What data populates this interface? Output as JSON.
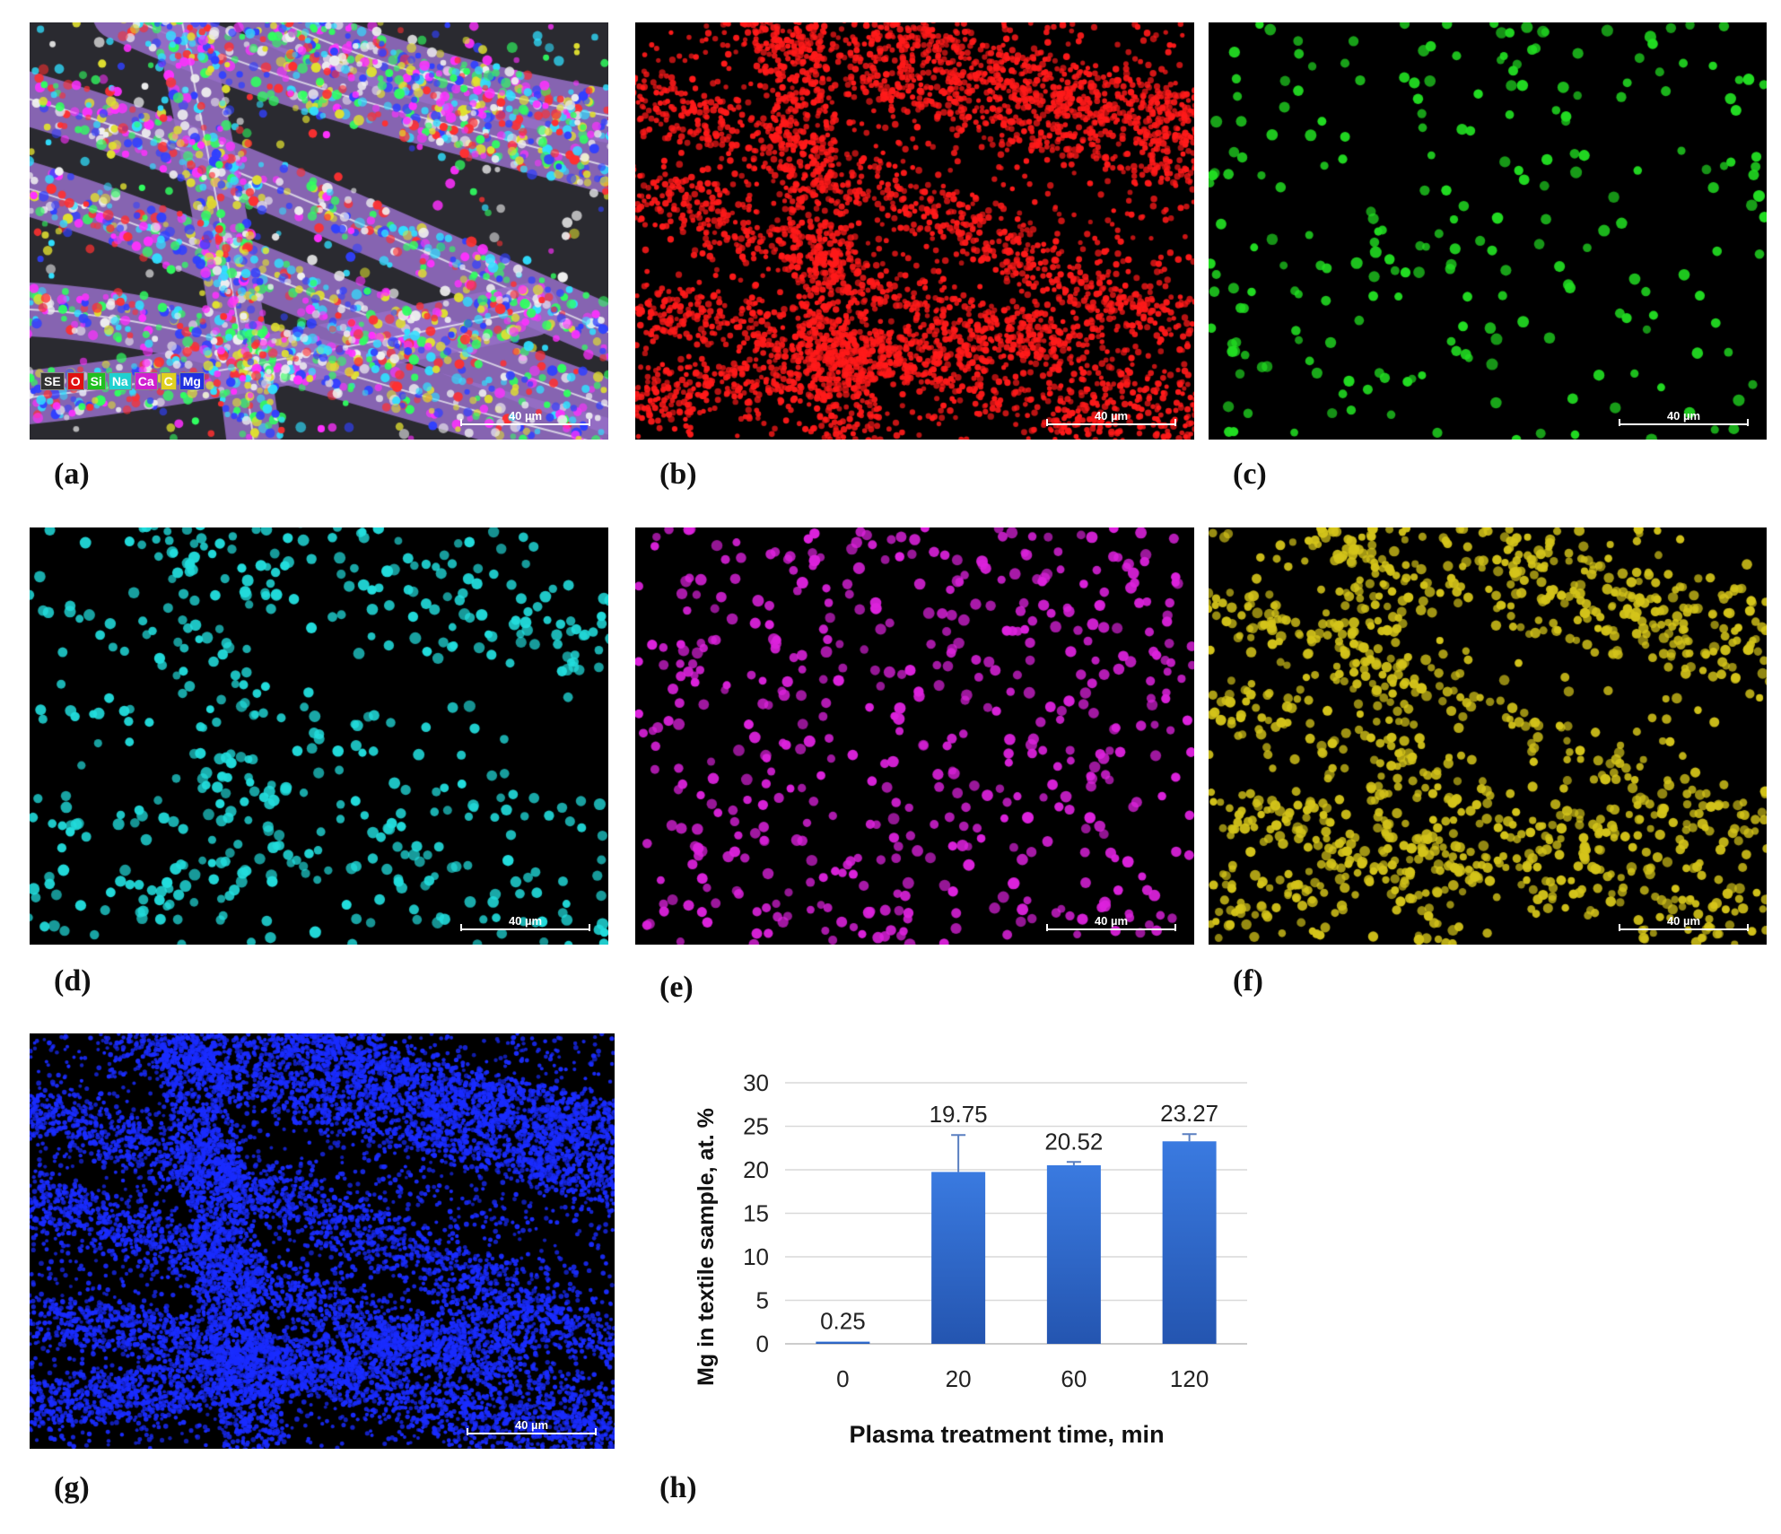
{
  "figure": {
    "panel_labels": [
      "(a)",
      "(b)",
      "(c)",
      "(d)",
      "(e)",
      "(f)",
      "(g)",
      "(h)"
    ],
    "scale_bar_text": "40 µm",
    "overlay_legend": [
      {
        "label": "SE",
        "color": "#e8e8e8"
      },
      {
        "label": "O",
        "color": "#ff2020"
      },
      {
        "label": "Si",
        "color": "#20e020"
      },
      {
        "label": "Na",
        "color": "#20e0e0"
      },
      {
        "label": "Ca",
        "color": "#e020e0"
      },
      {
        "label": "C",
        "color": "#e8e020"
      },
      {
        "label": "Mg",
        "color": "#2030ff"
      }
    ],
    "map_colors": {
      "b": "#ff1a1a",
      "c": "#22dd22",
      "d": "#22dddd",
      "e": "#dd22dd",
      "f": "#d4c41a",
      "g": "#1a2cff"
    }
  },
  "chart_data": {
    "type": "bar",
    "categories": [
      "0",
      "20",
      "60",
      "120"
    ],
    "values": [
      0.25,
      19.75,
      20.52,
      23.27
    ],
    "value_labels": [
      "0.25",
      "19.75",
      "20.52",
      "23.27"
    ],
    "error_upper": [
      0.25,
      24.0,
      20.9,
      24.1
    ],
    "xlabel": "Plasma treatment time, min",
    "ylabel": "Mg  in textile sample, at. %",
    "ylim": [
      0,
      30
    ],
    "yticks": [
      "0",
      "5",
      "10",
      "15",
      "20",
      "25",
      "30"
    ],
    "grid": true,
    "bar_color": "#2f6bd0"
  }
}
